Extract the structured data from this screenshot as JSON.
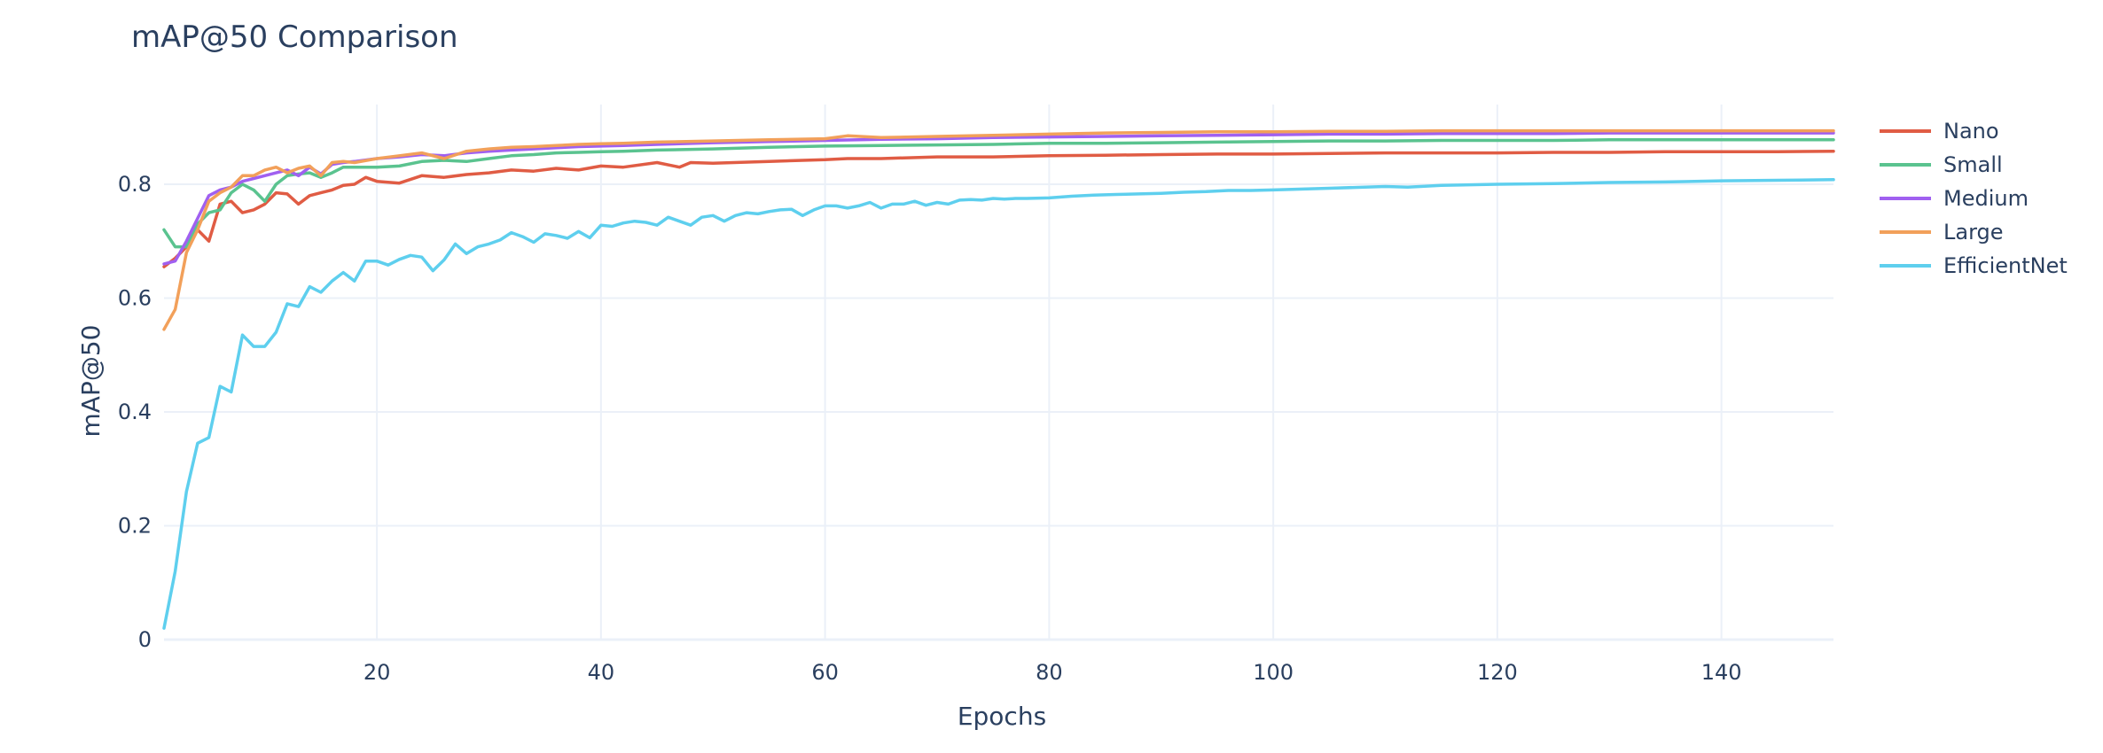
{
  "chart_data": {
    "type": "line",
    "title": "mAP@50 Comparison",
    "xlabel": "Epochs",
    "ylabel": "mAP@50",
    "xlim": [
      1,
      150
    ],
    "ylim": [
      0,
      0.94
    ],
    "xticks": [
      20,
      40,
      60,
      80,
      100,
      120,
      140
    ],
    "yticks": [
      0,
      0.2,
      0.4,
      0.6,
      0.8
    ],
    "ytick_labels": [
      "0",
      "0.2",
      "0.4",
      "0.6",
      "0.8"
    ],
    "grid": true,
    "legend_position": "top-right",
    "series": [
      {
        "name": "Nano",
        "color": "#e05c44",
        "points": [
          [
            1,
            0.655
          ],
          [
            2,
            0.67
          ],
          [
            3,
            0.69
          ],
          [
            4,
            0.72
          ],
          [
            5,
            0.7
          ],
          [
            6,
            0.765
          ],
          [
            7,
            0.77
          ],
          [
            8,
            0.75
          ],
          [
            9,
            0.755
          ],
          [
            10,
            0.765
          ],
          [
            11,
            0.785
          ],
          [
            12,
            0.783
          ],
          [
            13,
            0.765
          ],
          [
            14,
            0.78
          ],
          [
            15,
            0.785
          ],
          [
            16,
            0.79
          ],
          [
            17,
            0.798
          ],
          [
            18,
            0.8
          ],
          [
            19,
            0.812
          ],
          [
            20,
            0.805
          ],
          [
            22,
            0.802
          ],
          [
            24,
            0.815
          ],
          [
            26,
            0.812
          ],
          [
            28,
            0.817
          ],
          [
            30,
            0.82
          ],
          [
            32,
            0.825
          ],
          [
            34,
            0.823
          ],
          [
            36,
            0.828
          ],
          [
            38,
            0.825
          ],
          [
            40,
            0.832
          ],
          [
            42,
            0.83
          ],
          [
            45,
            0.838
          ],
          [
            47,
            0.83
          ],
          [
            48,
            0.838
          ],
          [
            50,
            0.837
          ],
          [
            55,
            0.84
          ],
          [
            58,
            0.842
          ],
          [
            60,
            0.843
          ],
          [
            62,
            0.845
          ],
          [
            65,
            0.845
          ],
          [
            70,
            0.848
          ],
          [
            75,
            0.848
          ],
          [
            80,
            0.85
          ],
          [
            85,
            0.851
          ],
          [
            90,
            0.852
          ],
          [
            95,
            0.853
          ],
          [
            100,
            0.853
          ],
          [
            105,
            0.854
          ],
          [
            110,
            0.855
          ],
          [
            115,
            0.855
          ],
          [
            120,
            0.855
          ],
          [
            125,
            0.856
          ],
          [
            130,
            0.856
          ],
          [
            135,
            0.857
          ],
          [
            140,
            0.857
          ],
          [
            145,
            0.857
          ],
          [
            150,
            0.858
          ]
        ]
      },
      {
        "name": "Small",
        "color": "#5ac38f",
        "points": [
          [
            1,
            0.72
          ],
          [
            2,
            0.69
          ],
          [
            3,
            0.69
          ],
          [
            4,
            0.73
          ],
          [
            5,
            0.75
          ],
          [
            6,
            0.755
          ],
          [
            7,
            0.785
          ],
          [
            8,
            0.8
          ],
          [
            9,
            0.79
          ],
          [
            10,
            0.77
          ],
          [
            11,
            0.8
          ],
          [
            12,
            0.815
          ],
          [
            13,
            0.818
          ],
          [
            14,
            0.82
          ],
          [
            15,
            0.812
          ],
          [
            16,
            0.82
          ],
          [
            17,
            0.83
          ],
          [
            18,
            0.83
          ],
          [
            20,
            0.83
          ],
          [
            22,
            0.832
          ],
          [
            24,
            0.84
          ],
          [
            26,
            0.842
          ],
          [
            28,
            0.84
          ],
          [
            30,
            0.845
          ],
          [
            32,
            0.85
          ],
          [
            34,
            0.852
          ],
          [
            36,
            0.855
          ],
          [
            38,
            0.856
          ],
          [
            40,
            0.857
          ],
          [
            42,
            0.858
          ],
          [
            45,
            0.86
          ],
          [
            50,
            0.862
          ],
          [
            55,
            0.865
          ],
          [
            60,
            0.867
          ],
          [
            65,
            0.868
          ],
          [
            70,
            0.869
          ],
          [
            75,
            0.87
          ],
          [
            80,
            0.872
          ],
          [
            85,
            0.872
          ],
          [
            90,
            0.873
          ],
          [
            95,
            0.874
          ],
          [
            100,
            0.875
          ],
          [
            105,
            0.876
          ],
          [
            110,
            0.876
          ],
          [
            115,
            0.877
          ],
          [
            120,
            0.877
          ],
          [
            125,
            0.877
          ],
          [
            130,
            0.878
          ],
          [
            135,
            0.878
          ],
          [
            140,
            0.878
          ],
          [
            145,
            0.878
          ],
          [
            150,
            0.878
          ]
        ]
      },
      {
        "name": "Medium",
        "color": "#a060f0",
        "points": [
          [
            1,
            0.66
          ],
          [
            2,
            0.665
          ],
          [
            3,
            0.7
          ],
          [
            4,
            0.74
          ],
          [
            5,
            0.78
          ],
          [
            6,
            0.79
          ],
          [
            7,
            0.795
          ],
          [
            8,
            0.805
          ],
          [
            9,
            0.81
          ],
          [
            10,
            0.815
          ],
          [
            11,
            0.82
          ],
          [
            12,
            0.825
          ],
          [
            13,
            0.815
          ],
          [
            14,
            0.83
          ],
          [
            15,
            0.818
          ],
          [
            16,
            0.835
          ],
          [
            17,
            0.838
          ],
          [
            18,
            0.84
          ],
          [
            20,
            0.845
          ],
          [
            22,
            0.848
          ],
          [
            24,
            0.852
          ],
          [
            26,
            0.85
          ],
          [
            28,
            0.855
          ],
          [
            30,
            0.858
          ],
          [
            32,
            0.86
          ],
          [
            34,
            0.862
          ],
          [
            36,
            0.864
          ],
          [
            38,
            0.866
          ],
          [
            40,
            0.867
          ],
          [
            42,
            0.868
          ],
          [
            45,
            0.87
          ],
          [
            50,
            0.873
          ],
          [
            55,
            0.875
          ],
          [
            60,
            0.877
          ],
          [
            65,
            0.879
          ],
          [
            70,
            0.88
          ],
          [
            75,
            0.882
          ],
          [
            80,
            0.883
          ],
          [
            85,
            0.884
          ],
          [
            90,
            0.885
          ],
          [
            95,
            0.886
          ],
          [
            100,
            0.887
          ],
          [
            105,
            0.888
          ],
          [
            110,
            0.888
          ],
          [
            115,
            0.889
          ],
          [
            120,
            0.889
          ],
          [
            125,
            0.889
          ],
          [
            130,
            0.89
          ],
          [
            135,
            0.89
          ],
          [
            140,
            0.89
          ],
          [
            145,
            0.89
          ],
          [
            150,
            0.89
          ]
        ]
      },
      {
        "name": "Large",
        "color": "#f2a05a",
        "points": [
          [
            1,
            0.545
          ],
          [
            2,
            0.58
          ],
          [
            3,
            0.68
          ],
          [
            4,
            0.72
          ],
          [
            5,
            0.77
          ],
          [
            6,
            0.785
          ],
          [
            7,
            0.795
          ],
          [
            8,
            0.815
          ],
          [
            9,
            0.815
          ],
          [
            10,
            0.825
          ],
          [
            11,
            0.83
          ],
          [
            12,
            0.82
          ],
          [
            13,
            0.828
          ],
          [
            14,
            0.832
          ],
          [
            15,
            0.815
          ],
          [
            16,
            0.838
          ],
          [
            17,
            0.84
          ],
          [
            18,
            0.838
          ],
          [
            20,
            0.845
          ],
          [
            22,
            0.85
          ],
          [
            24,
            0.855
          ],
          [
            26,
            0.845
          ],
          [
            28,
            0.858
          ],
          [
            30,
            0.862
          ],
          [
            32,
            0.865
          ],
          [
            34,
            0.866
          ],
          [
            36,
            0.868
          ],
          [
            38,
            0.87
          ],
          [
            40,
            0.871
          ],
          [
            42,
            0.872
          ],
          [
            45,
            0.874
          ],
          [
            50,
            0.876
          ],
          [
            55,
            0.878
          ],
          [
            60,
            0.88
          ],
          [
            62,
            0.885
          ],
          [
            65,
            0.882
          ],
          [
            70,
            0.884
          ],
          [
            75,
            0.886
          ],
          [
            80,
            0.888
          ],
          [
            85,
            0.89
          ],
          [
            90,
            0.891
          ],
          [
            95,
            0.892
          ],
          [
            100,
            0.892
          ],
          [
            105,
            0.893
          ],
          [
            110,
            0.893
          ],
          [
            115,
            0.894
          ],
          [
            120,
            0.894
          ],
          [
            125,
            0.894
          ],
          [
            130,
            0.894
          ],
          [
            135,
            0.894
          ],
          [
            140,
            0.894
          ],
          [
            145,
            0.894
          ],
          [
            150,
            0.894
          ]
        ]
      },
      {
        "name": "EfficientNet",
        "color": "#5ecfee",
        "points": [
          [
            1,
            0.02
          ],
          [
            2,
            0.12
          ],
          [
            3,
            0.26
          ],
          [
            4,
            0.345
          ],
          [
            5,
            0.355
          ],
          [
            6,
            0.445
          ],
          [
            7,
            0.435
          ],
          [
            8,
            0.535
          ],
          [
            9,
            0.515
          ],
          [
            10,
            0.515
          ],
          [
            11,
            0.54
          ],
          [
            12,
            0.59
          ],
          [
            13,
            0.585
          ],
          [
            14,
            0.62
          ],
          [
            15,
            0.61
          ],
          [
            16,
            0.63
          ],
          [
            17,
            0.645
          ],
          [
            18,
            0.63
          ],
          [
            19,
            0.665
          ],
          [
            20,
            0.665
          ],
          [
            21,
            0.658
          ],
          [
            22,
            0.668
          ],
          [
            23,
            0.675
          ],
          [
            24,
            0.672
          ],
          [
            25,
            0.648
          ],
          [
            26,
            0.667
          ],
          [
            27,
            0.695
          ],
          [
            28,
            0.678
          ],
          [
            29,
            0.69
          ],
          [
            30,
            0.695
          ],
          [
            31,
            0.702
          ],
          [
            32,
            0.715
          ],
          [
            33,
            0.708
          ],
          [
            34,
            0.698
          ],
          [
            35,
            0.713
          ],
          [
            36,
            0.71
          ],
          [
            37,
            0.705
          ],
          [
            38,
            0.717
          ],
          [
            39,
            0.706
          ],
          [
            40,
            0.728
          ],
          [
            41,
            0.726
          ],
          [
            42,
            0.732
          ],
          [
            43,
            0.735
          ],
          [
            44,
            0.733
          ],
          [
            45,
            0.728
          ],
          [
            46,
            0.742
          ],
          [
            47,
            0.735
          ],
          [
            48,
            0.728
          ],
          [
            49,
            0.742
          ],
          [
            50,
            0.745
          ],
          [
            51,
            0.735
          ],
          [
            52,
            0.745
          ],
          [
            53,
            0.75
          ],
          [
            54,
            0.748
          ],
          [
            55,
            0.752
          ],
          [
            56,
            0.755
          ],
          [
            57,
            0.756
          ],
          [
            58,
            0.745
          ],
          [
            59,
            0.755
          ],
          [
            60,
            0.762
          ],
          [
            61,
            0.762
          ],
          [
            62,
            0.758
          ],
          [
            63,
            0.762
          ],
          [
            64,
            0.768
          ],
          [
            65,
            0.758
          ],
          [
            66,
            0.765
          ],
          [
            67,
            0.765
          ],
          [
            68,
            0.77
          ],
          [
            69,
            0.763
          ],
          [
            70,
            0.768
          ],
          [
            71,
            0.765
          ],
          [
            72,
            0.772
          ],
          [
            73,
            0.773
          ],
          [
            74,
            0.772
          ],
          [
            75,
            0.775
          ],
          [
            76,
            0.774
          ],
          [
            77,
            0.775
          ],
          [
            78,
            0.775
          ],
          [
            80,
            0.776
          ],
          [
            82,
            0.779
          ],
          [
            84,
            0.781
          ],
          [
            86,
            0.782
          ],
          [
            88,
            0.783
          ],
          [
            90,
            0.784
          ],
          [
            92,
            0.786
          ],
          [
            94,
            0.787
          ],
          [
            96,
            0.789
          ],
          [
            98,
            0.789
          ],
          [
            100,
            0.79
          ],
          [
            105,
            0.793
          ],
          [
            110,
            0.796
          ],
          [
            112,
            0.795
          ],
          [
            115,
            0.798
          ],
          [
            120,
            0.8
          ],
          [
            125,
            0.801
          ],
          [
            130,
            0.803
          ],
          [
            135,
            0.804
          ],
          [
            140,
            0.806
          ],
          [
            145,
            0.807
          ],
          [
            150,
            0.808
          ]
        ]
      }
    ]
  }
}
